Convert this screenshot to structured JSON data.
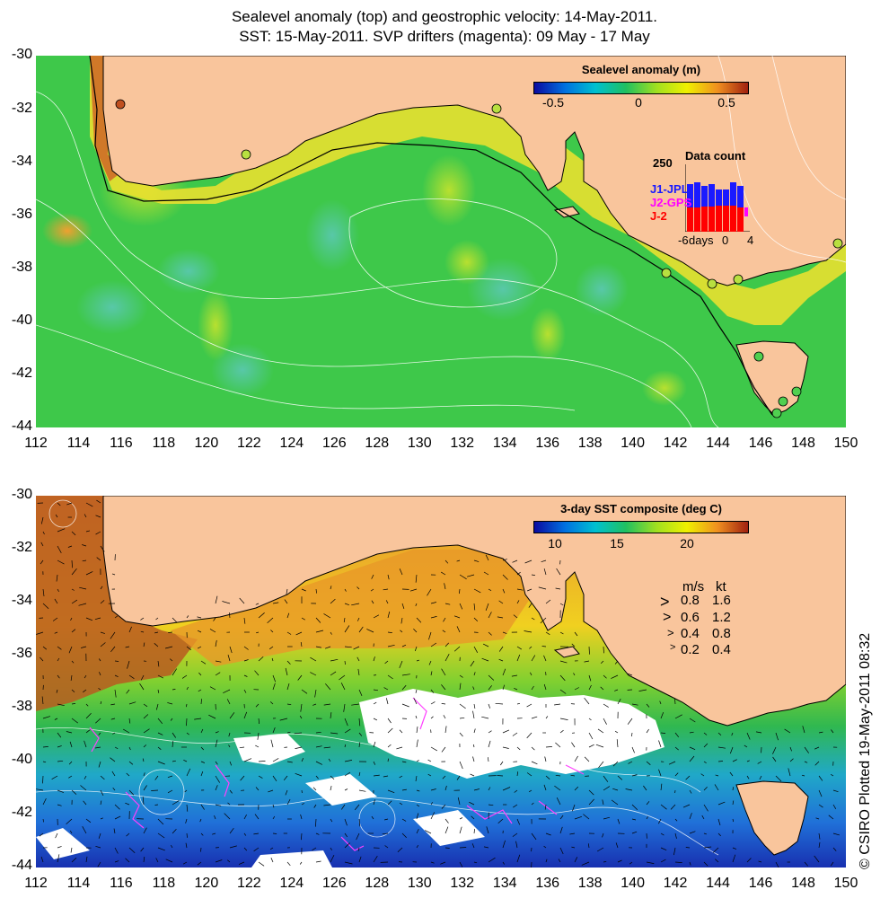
{
  "title": {
    "line1": "Sealevel anomaly (top) and geostrophic velocity: 14-May-2011.",
    "line2": "SST: 15-May-2011. SVP drifters (magenta): 09 May - 17 May"
  },
  "axes": {
    "lat_ticks": [
      "-30",
      "-32",
      "-34",
      "-36",
      "-38",
      "-40",
      "-42",
      "-44"
    ],
    "lon_ticks": [
      "112",
      "114",
      "116",
      "118",
      "120",
      "122",
      "124",
      "126",
      "128",
      "130",
      "132",
      "134",
      "136",
      "138",
      "140",
      "142",
      "144",
      "146",
      "148",
      "150"
    ]
  },
  "top_panel": {
    "colorbar": {
      "title": "Sealevel anomaly (m)",
      "ticks": [
        "-0.5",
        "0",
        "0.5"
      ]
    },
    "data_count": {
      "title": "Data count",
      "ymax_label": "250",
      "x_labels": [
        "-6",
        "days",
        "0",
        "4"
      ],
      "series": [
        {
          "name": "J1-JPL",
          "color": "#1a1aff"
        },
        {
          "name": "J2-GPS",
          "color": "#ff00ff"
        },
        {
          "name": "J-2",
          "color": "#ff0000"
        }
      ]
    }
  },
  "bottom_panel": {
    "colorbar": {
      "title": "3-day SST composite (deg C)",
      "ticks": [
        "10",
        "15",
        "20"
      ]
    },
    "speed_legend": {
      "header_ms": "m/s",
      "header_kt": "kt",
      "rows": [
        {
          "ms": "0.8",
          "kt": "1.6"
        },
        {
          "ms": "0.6",
          "kt": "1.2"
        },
        {
          "ms": "0.4",
          "kt": "0.8"
        },
        {
          "ms": "0.2",
          "kt": "0.4"
        }
      ]
    }
  },
  "credit": "© CSIRO Plotted 19-May-2011 08:32",
  "colors": {
    "land": "#f9c59c",
    "coast": "#000000",
    "ocean_green": "#3cc43c",
    "cloud": "#ffffff"
  }
}
